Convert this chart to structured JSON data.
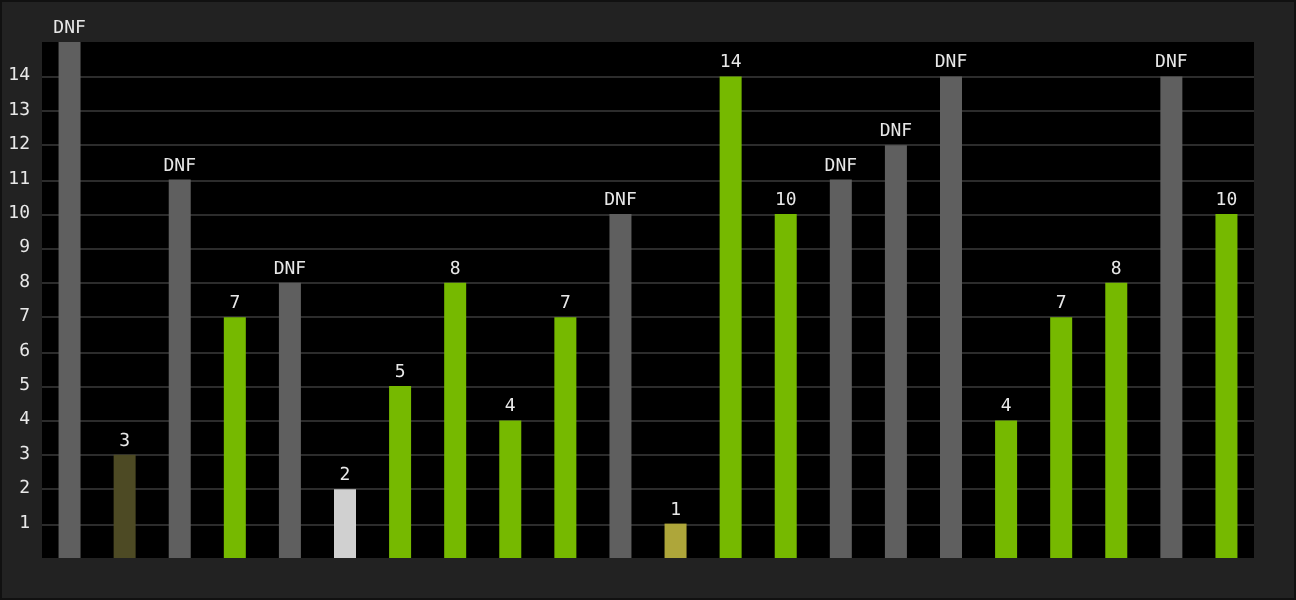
{
  "chart_data": {
    "type": "bar",
    "categories": [
      null,
      null,
      null,
      null,
      null,
      null,
      null,
      null,
      null,
      null,
      null,
      null,
      null,
      null,
      null,
      null,
      null,
      null,
      null,
      null,
      null,
      null
    ],
    "values": [
      15,
      3,
      11,
      7,
      8,
      2,
      5,
      8,
      4,
      7,
      10,
      1,
      14,
      10,
      11,
      12,
      14,
      4,
      7,
      8,
      14,
      10
    ],
    "colors": [
      "#5f5f5f",
      "#4d4a24",
      "#5f5f5f",
      "#76b900",
      "#5f5f5f",
      "#d0d0d0",
      "#76b900",
      "#76b900",
      "#76b900",
      "#76b900",
      "#5f5f5f",
      "#aea63a",
      "#76b900",
      "#76b900",
      "#5f5f5f",
      "#5f5f5f",
      "#5f5f5f",
      "#76b900",
      "#76b900",
      "#76b900",
      "#5f5f5f",
      "#76b900"
    ],
    "value_labels": [
      "DNF",
      "3",
      "DNF",
      "7",
      "DNF",
      "2",
      "5",
      "8",
      "4",
      "7",
      "DNF",
      "1",
      "14",
      "10",
      "DNF",
      "DNF",
      "DNF",
      "4",
      "7",
      "8",
      "DNF",
      "10"
    ],
    "ylim": [
      0,
      15
    ],
    "yticks": [
      1,
      2,
      3,
      4,
      5,
      6,
      7,
      8,
      9,
      10,
      11,
      12,
      13,
      14
    ],
    "grid": "y"
  }
}
